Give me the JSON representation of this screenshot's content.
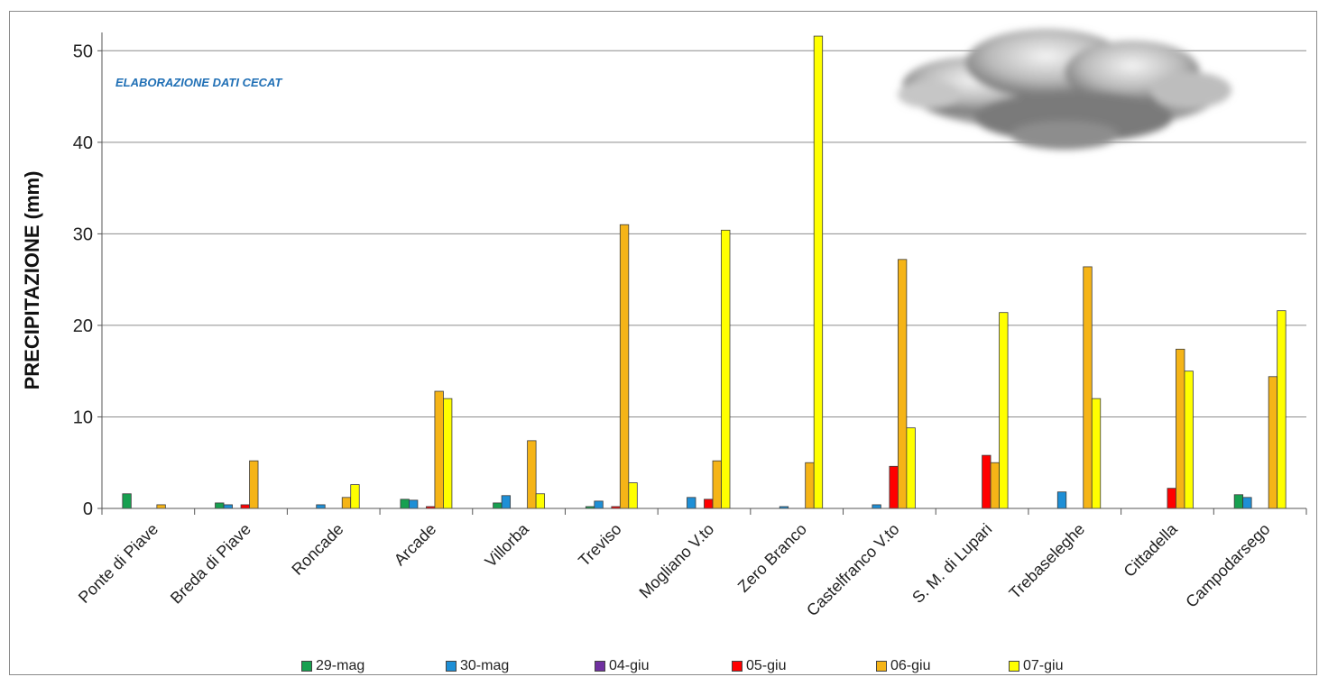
{
  "chart_data": {
    "type": "bar",
    "title": "",
    "annotation": "ELABORAZIONE DATI CECAT",
    "ylabel": "PRECIPITAZIONE (mm)",
    "xlabel": "",
    "ylim": [
      0,
      52
    ],
    "yticks": [
      "0",
      "10",
      "20",
      "30",
      "40",
      "50"
    ],
    "grid": true,
    "legend_position": "bottom",
    "categories": [
      "Ponte di Piave",
      "Breda di Piave",
      "Roncade",
      "Arcade",
      "Villorba",
      "Treviso",
      "Mogliano V.to",
      "Zero Branco",
      "Castelfranco V.to",
      "S. M. di Lupari",
      "Trebaseleghe",
      "Cittadella",
      "Campodarsego"
    ],
    "series": [
      {
        "name": "29-mag",
        "color": "#17a050",
        "values": [
          1.6,
          0.6,
          0,
          1.0,
          0.6,
          0.2,
          0,
          0,
          0,
          0,
          0,
          0,
          1.5
        ]
      },
      {
        "name": "30-mag",
        "color": "#1e8fd6",
        "values": [
          0,
          0.4,
          0.4,
          0.9,
          1.4,
          0.8,
          1.2,
          0.2,
          0.4,
          0,
          1.8,
          0,
          1.2
        ]
      },
      {
        "name": "04-giu",
        "color": "#7030a0",
        "values": [
          0,
          0,
          0,
          0,
          0,
          0,
          0,
          0,
          0,
          0,
          0,
          0,
          0
        ]
      },
      {
        "name": "05-giu",
        "color": "#ff0000",
        "values": [
          0,
          0.4,
          0,
          0.2,
          0,
          0.2,
          1.0,
          0,
          4.6,
          5.8,
          0,
          2.2,
          0
        ]
      },
      {
        "name": "06-giu",
        "color": "#f5b417",
        "values": [
          0.4,
          5.2,
          1.2,
          12.8,
          7.4,
          31.0,
          5.2,
          5.0,
          27.2,
          5.0,
          26.4,
          17.4,
          14.4
        ]
      },
      {
        "name": "07-giu",
        "color": "#ffff00",
        "values": [
          0,
          0,
          2.6,
          12.0,
          1.6,
          2.8,
          30.4,
          51.6,
          8.8,
          21.4,
          12.0,
          15.0,
          21.6
        ]
      }
    ]
  }
}
